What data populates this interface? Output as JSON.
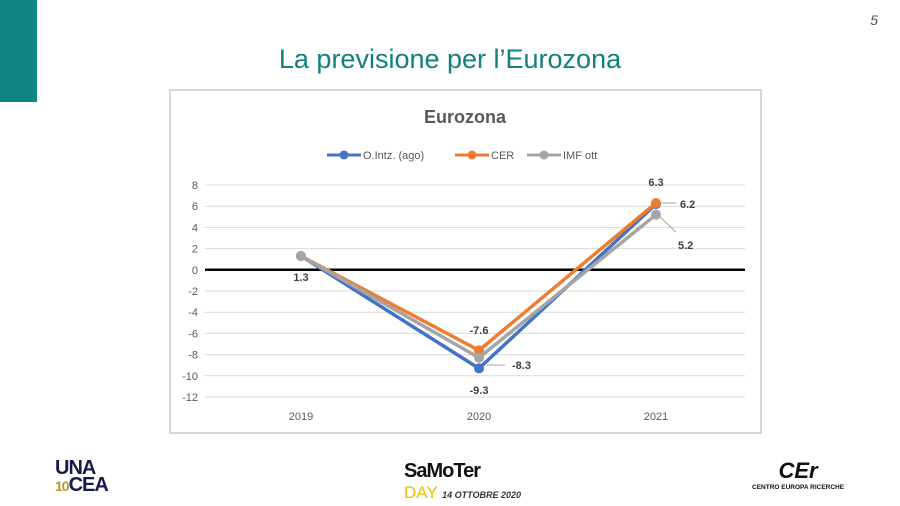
{
  "page_number": "5",
  "slide_title": "La previsione per l’Eurozona",
  "logos": {
    "left": "UNACEA 10 years",
    "center_top": "SaMoTer",
    "center_day": "DAY",
    "center_date": "14 OTTOBRE 2020",
    "right_top": "CEr",
    "right_bottom": "CENTRO EUROPA RICERCHE"
  },
  "chart_data": {
    "type": "line",
    "title": "Eurozona",
    "categories": [
      "2019",
      "2020",
      "2021"
    ],
    "series": [
      {
        "name": "O.Intz. (ago)",
        "color": "#4472c4",
        "values": [
          1.3,
          -9.3,
          6.2
        ]
      },
      {
        "name": "CER",
        "color": "#ed7d31",
        "values": [
          1.3,
          -7.6,
          6.3
        ]
      },
      {
        "name": "IMF ott",
        "color": "#a5a5a5",
        "values": [
          1.3,
          -8.3,
          5.2
        ]
      }
    ],
    "data_labels": [
      "1.3",
      "-9.3",
      "-7.6",
      "-8.3",
      "6.3",
      "6.2",
      "5.2"
    ],
    "yticks": [
      "8",
      "6",
      "4",
      "2",
      "0",
      "-2",
      "-4",
      "-6",
      "-8",
      "-10",
      "-12"
    ],
    "ylim": [
      -12,
      8
    ],
    "legend": "top",
    "grid": true
  }
}
